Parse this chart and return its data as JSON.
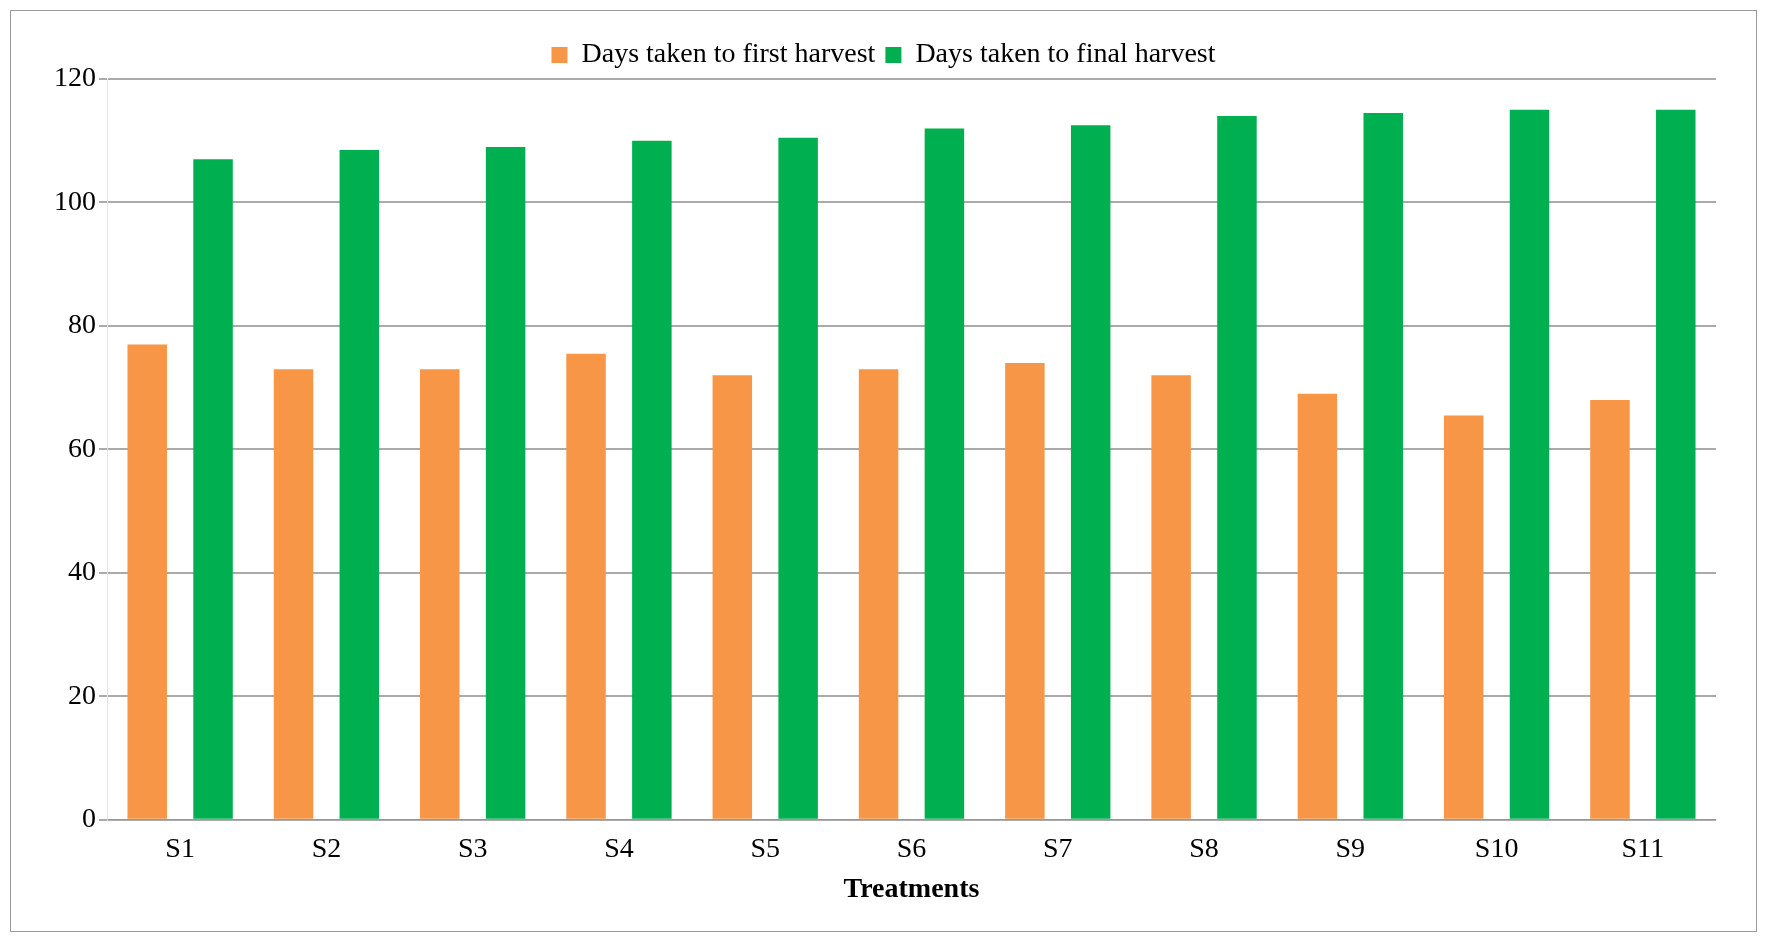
{
  "chart_data": {
    "type": "bar",
    "xlabel": "Treatments",
    "categories": [
      "S1",
      "S2",
      "S3",
      "S4",
      "S5",
      "S6",
      "S7",
      "S8",
      "S9",
      "S10",
      "S11"
    ],
    "series": [
      {
        "name": "Days taken to first harvest",
        "color": "#f79646",
        "values": [
          77,
          73,
          73,
          75.5,
          72,
          73,
          74,
          72,
          69,
          65.5,
          68
        ]
      },
      {
        "name": "Days taken to final harvest",
        "color": "#00b050",
        "values": [
          107,
          108.5,
          109,
          110,
          110.5,
          112,
          112.5,
          114,
          114.5,
          115,
          115
        ]
      }
    ],
    "ylim": [
      0,
      120
    ],
    "yticks": [
      0,
      20,
      40,
      60,
      80,
      100,
      120
    ],
    "grid": "y",
    "legend": "top"
  }
}
